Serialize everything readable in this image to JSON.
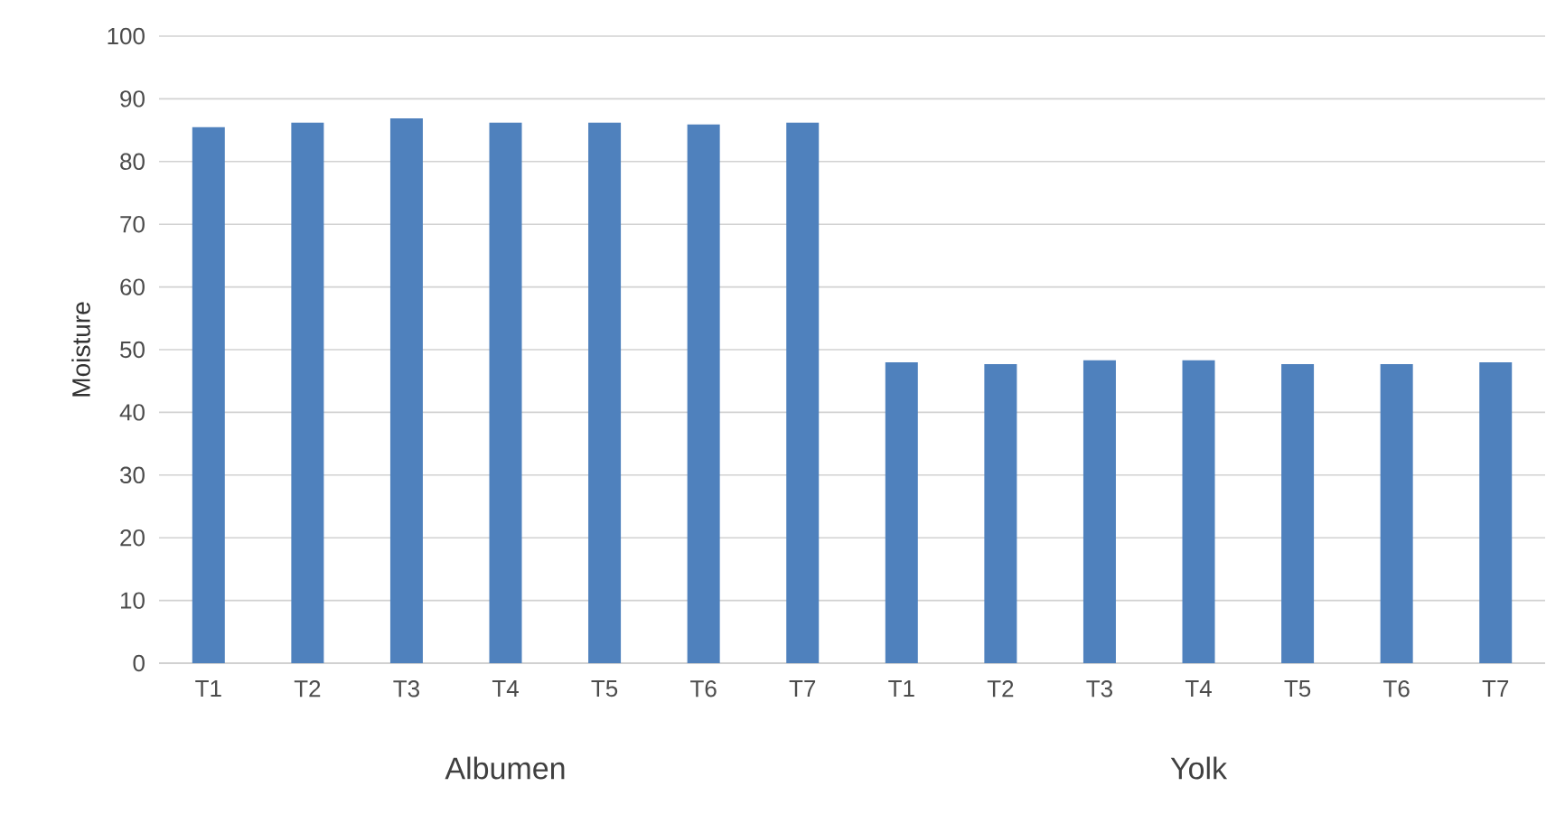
{
  "chart_data": {
    "type": "bar",
    "ylabel": "Moisture",
    "categories": [
      "T1",
      "T2",
      "T3",
      "T4",
      "T5",
      "T6",
      "T7",
      "T1",
      "T2",
      "T3",
      "T4",
      "T5",
      "T6",
      "T7"
    ],
    "values": [
      85.5,
      86.2,
      86.9,
      86.2,
      86.2,
      85.9,
      86.2,
      48.0,
      47.7,
      48.3,
      48.3,
      47.7,
      47.7,
      48.0
    ],
    "color": "#4f81bd",
    "ylim": [
      0,
      100
    ],
    "yticks": [
      0,
      10,
      20,
      30,
      40,
      50,
      60,
      70,
      80,
      90,
      100
    ],
    "grid": "y",
    "annotations": [
      "Albumen",
      "Yolk"
    ]
  }
}
